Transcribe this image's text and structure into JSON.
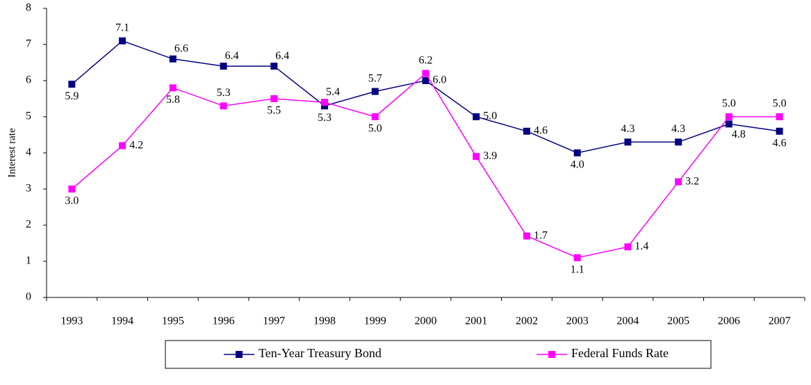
{
  "chart_data": {
    "type": "line",
    "y_label": "Interest rate",
    "categories": [
      "1993",
      "1994",
      "1995",
      "1996",
      "1997",
      "1998",
      "1999",
      "2000",
      "2001",
      "2002",
      "2003",
      "2004",
      "2005",
      "2006",
      "2007"
    ],
    "series": [
      {
        "name": "Ten-Year Treasury Bond",
        "color": "#000080",
        "values": [
          5.9,
          7.1,
          6.6,
          6.4,
          6.4,
          5.3,
          5.7,
          6.0,
          5.0,
          4.6,
          4.0,
          4.3,
          4.3,
          4.8,
          4.6
        ],
        "value_labels": [
          "5.9",
          "7.1",
          "6.6",
          "6.4",
          "6.4",
          "5.3",
          "5.7",
          "6.0",
          "5.0",
          "4.6",
          "4.0",
          "4.3",
          "4.3",
          "4.8",
          "4.6"
        ]
      },
      {
        "name": "Federal Funds Rate",
        "color": "#ff00ff",
        "values": [
          3.0,
          4.2,
          5.8,
          5.3,
          5.5,
          5.4,
          5.0,
          6.2,
          3.9,
          1.7,
          1.1,
          1.4,
          3.2,
          5.0,
          5.0
        ],
        "value_labels": [
          "3.0",
          "4.2",
          "5.8",
          "5.3",
          "5.5",
          "5.4",
          "5.0",
          "6.2",
          "3.9",
          "1.7",
          "1.1",
          "1.4",
          "3.2",
          "5.0",
          "5.0"
        ]
      }
    ],
    "ylim": [
      0,
      8
    ],
    "yticks": [
      0,
      1,
      2,
      3,
      4,
      5,
      6,
      7,
      8
    ],
    "grid": false,
    "legend": "bottom"
  }
}
